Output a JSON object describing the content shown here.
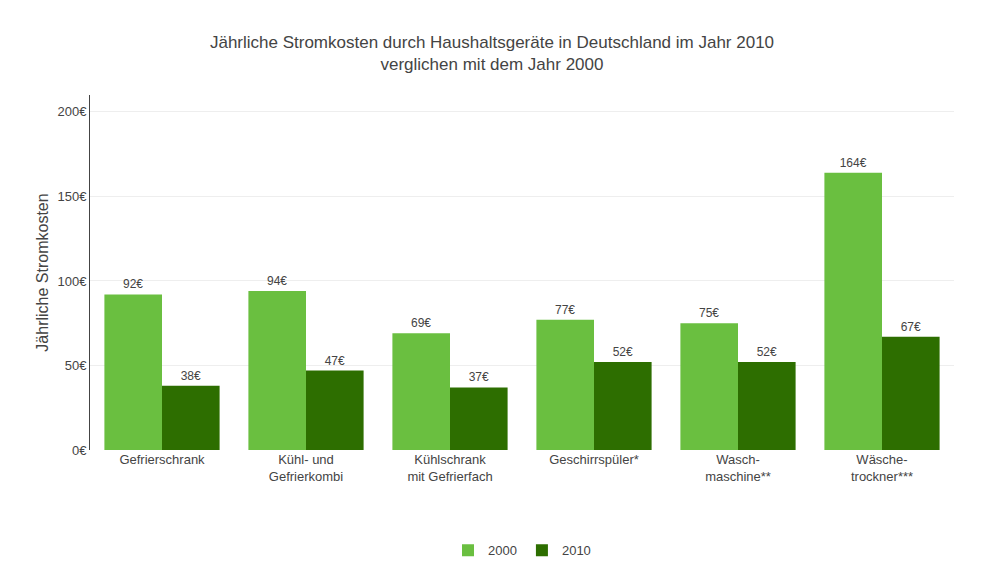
{
  "chart_data": {
    "type": "bar",
    "title": "Jährliche Stromkosten durch Haushaltsgeräte in Deutschland im Jahr 2010\nverglichen mit dem Jahr 2000",
    "categories": [
      "Gefrierschrank",
      "Kühl- und\nGefrierkombi",
      "Kühlschrank\nmit Gefrierfach",
      "Geschirrspüler*",
      "Wasch-\nmaschine**",
      "Wäsche-\ntrockner***"
    ],
    "series": [
      {
        "name": "2000",
        "color": "#6abf40",
        "values": [
          92,
          94,
          69,
          77,
          75,
          164
        ],
        "value_labels": [
          "92€",
          "94€",
          "69€",
          "77€",
          "75€",
          "164€"
        ]
      },
      {
        "name": "2010",
        "color": "#2d6e00",
        "values": [
          38,
          47,
          37,
          52,
          52,
          67
        ],
        "value_labels": [
          "38€",
          "47€",
          "37€",
          "52€",
          "52€",
          "67€"
        ]
      }
    ],
    "ylabel": "Jährliche Stromkosten",
    "ylim": [
      0,
      210
    ],
    "yticks": [
      {
        "value": 0,
        "label": "0€"
      },
      {
        "value": 50,
        "label": "50€"
      },
      {
        "value": 100,
        "label": "100€"
      },
      {
        "value": 150,
        "label": "150€"
      },
      {
        "value": 200,
        "label": "200€"
      }
    ],
    "grid": true,
    "legend": "bottom",
    "data_labels": true
  }
}
